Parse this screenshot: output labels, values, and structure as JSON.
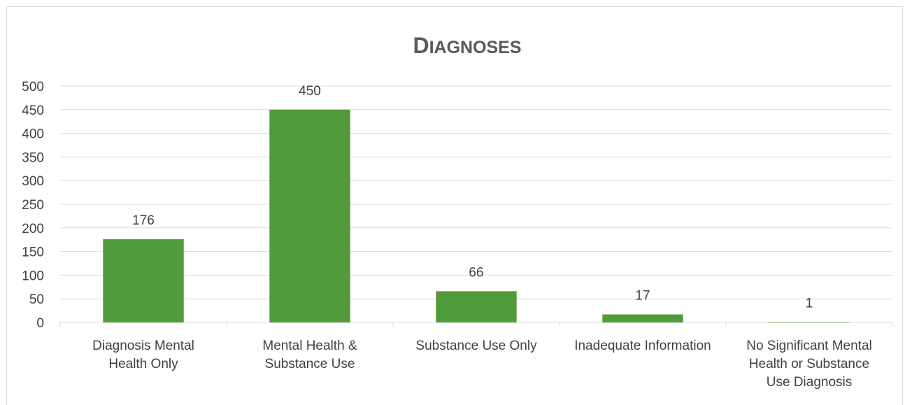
{
  "chart_data": {
    "type": "bar",
    "title": "Diagnoses",
    "categories": [
      [
        "Diagnosis Mental",
        "Health Only"
      ],
      [
        "Mental Health &",
        "Substance Use"
      ],
      [
        "Substance Use Only"
      ],
      [
        "Inadequate Information"
      ],
      [
        "No Significant Mental",
        "Health or Substance",
        "Use Diagnosis"
      ]
    ],
    "values": [
      176,
      450,
      66,
      17,
      1
    ],
    "data_labels": [
      "176",
      "450",
      "66",
      "17",
      "1"
    ],
    "ylim": [
      0,
      500
    ],
    "yticks": [
      0,
      50,
      100,
      150,
      200,
      250,
      300,
      350,
      400,
      450,
      500
    ],
    "grid": true,
    "legend": "none",
    "xlabel": "",
    "ylabel": "",
    "bar_color": "#529b3b",
    "grid_color": "#d9d9d9"
  }
}
